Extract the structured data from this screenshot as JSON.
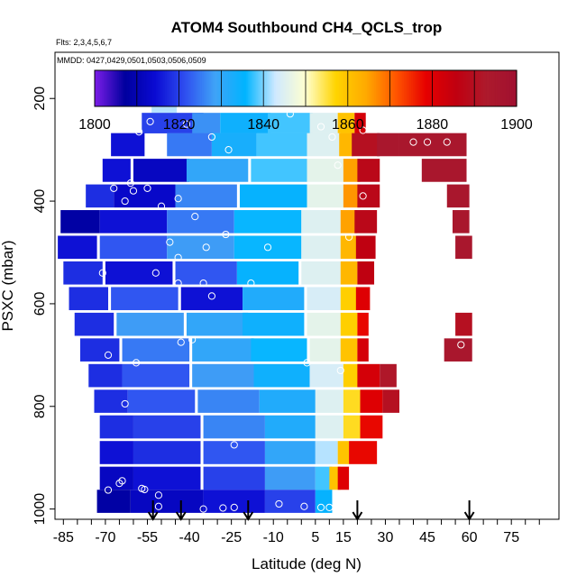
{
  "chart_data": {
    "type": "heatmap",
    "title": "ATOM4 Southbound CH4_QCLS_trop",
    "flights_note": "Flts: 2,3,4,5,6,7",
    "dates_note": "MMDD: 0427,0429,0501,0503,0506,0509",
    "xlabel": "Latitude (deg N)",
    "ylabel": "PSXC (mbar)",
    "xlim": [
      -88,
      92
    ],
    "ylim": [
      1020,
      110
    ],
    "x_tick_labels": [
      "-85",
      "-70",
      "-55",
      "-40",
      "-25",
      "-10",
      "5",
      "15",
      "30",
      "45",
      "60",
      "75"
    ],
    "x_tick_values": [
      -85,
      -70,
      -55,
      -40,
      -25,
      -10,
      5,
      15,
      30,
      45,
      60,
      75
    ],
    "x_minor_step": 5,
    "y_tick_labels": [
      "200",
      "400",
      "600",
      "800",
      "1000"
    ],
    "y_tick_values": [
      200,
      400,
      600,
      800,
      1000
    ],
    "colorbar": {
      "min": 1800,
      "max": 1900,
      "tick_labels": [
        "1800",
        "1820",
        "1840",
        "1860",
        "1880",
        "1900"
      ],
      "tick_values": [
        1800,
        1820,
        1840,
        1860,
        1880,
        1900
      ],
      "colors": [
        "#7d1ee8",
        "#00009e",
        "#0a0ad2",
        "#2f4ff0",
        "#3fa3f7",
        "#00b4ff",
        "#cfe9ff",
        "#ffffcf",
        "#ffd400",
        "#ffaa00",
        "#ff5500",
        "#e60000",
        "#c00010",
        "#ad1a2c",
        "#a01030"
      ]
    },
    "cells": [
      {
        "lat": -49,
        "p": 208,
        "dlat": 9,
        "dp": 40,
        "v": 1842
      },
      {
        "lat": -46,
        "p": 248,
        "dlat": 22,
        "dp": 40,
        "v": 1820
      },
      {
        "lat": -34,
        "p": 248,
        "dlat": 10,
        "dp": 40,
        "v": 1827
      },
      {
        "lat": -20,
        "p": 248,
        "dlat": 18,
        "dp": 40,
        "v": 1834
      },
      {
        "lat": -4,
        "p": 248,
        "dlat": 16,
        "dp": 40,
        "v": 1838
      },
      {
        "lat": 8,
        "p": 248,
        "dlat": 10,
        "dp": 40,
        "v": 1845
      },
      {
        "lat": 16,
        "p": 248,
        "dlat": 6,
        "dp": 40,
        "v": 1860
      },
      {
        "lat": 21,
        "p": 248,
        "dlat": 4,
        "dp": 40,
        "v": 1882
      },
      {
        "lat": -62,
        "p": 290,
        "dlat": 12,
        "dp": 45,
        "v": 1815
      },
      {
        "lat": -40,
        "p": 290,
        "dlat": 16,
        "dp": 45,
        "v": 1825
      },
      {
        "lat": -24,
        "p": 290,
        "dlat": 16,
        "dp": 45,
        "v": 1833
      },
      {
        "lat": -7,
        "p": 290,
        "dlat": 18,
        "dp": 45,
        "v": 1838
      },
      {
        "lat": 8,
        "p": 290,
        "dlat": 12,
        "dp": 45,
        "v": 1845
      },
      {
        "lat": 16,
        "p": 290,
        "dlat": 5,
        "dp": 45,
        "v": 1862
      },
      {
        "lat": 23,
        "p": 290,
        "dlat": 10,
        "dp": 45,
        "v": 1890
      },
      {
        "lat": 31,
        "p": 290,
        "dlat": 8,
        "dp": 45,
        "v": 1895
      },
      {
        "lat": 47,
        "p": 290,
        "dlat": 24,
        "dp": 45,
        "v": 1895
      },
      {
        "lat": -66,
        "p": 340,
        "dlat": 10,
        "dp": 45,
        "v": 1815
      },
      {
        "lat": -50,
        "p": 340,
        "dlat": 20,
        "dp": 45,
        "v": 1812
      },
      {
        "lat": -30,
        "p": 340,
        "dlat": 22,
        "dp": 45,
        "v": 1830
      },
      {
        "lat": -8,
        "p": 340,
        "dlat": 20,
        "dp": 45,
        "v": 1838
      },
      {
        "lat": 9,
        "p": 340,
        "dlat": 14,
        "dp": 45,
        "v": 1846
      },
      {
        "lat": 18,
        "p": 340,
        "dlat": 6,
        "dp": 45,
        "v": 1865
      },
      {
        "lat": 24,
        "p": 340,
        "dlat": 8,
        "dp": 45,
        "v": 1888
      },
      {
        "lat": 51,
        "p": 340,
        "dlat": 16,
        "dp": 45,
        "v": 1895
      },
      {
        "lat": -72,
        "p": 390,
        "dlat": 10,
        "dp": 45,
        "v": 1818
      },
      {
        "lat": -56,
        "p": 390,
        "dlat": 22,
        "dp": 45,
        "v": 1813
      },
      {
        "lat": -34,
        "p": 390,
        "dlat": 22,
        "dp": 45,
        "v": 1826
      },
      {
        "lat": -10,
        "p": 390,
        "dlat": 24,
        "dp": 45,
        "v": 1835
      },
      {
        "lat": 9,
        "p": 390,
        "dlat": 14,
        "dp": 45,
        "v": 1846
      },
      {
        "lat": 18,
        "p": 390,
        "dlat": 6,
        "dp": 45,
        "v": 1866
      },
      {
        "lat": 24,
        "p": 390,
        "dlat": 8,
        "dp": 45,
        "v": 1888
      },
      {
        "lat": 56,
        "p": 390,
        "dlat": 8,
        "dp": 45,
        "v": 1895
      },
      {
        "lat": -79,
        "p": 440,
        "dlat": 14,
        "dp": 45,
        "v": 1808
      },
      {
        "lat": -60,
        "p": 440,
        "dlat": 24,
        "dp": 45,
        "v": 1815
      },
      {
        "lat": -36,
        "p": 440,
        "dlat": 24,
        "dp": 45,
        "v": 1825
      },
      {
        "lat": -12,
        "p": 440,
        "dlat": 24,
        "dp": 45,
        "v": 1836
      },
      {
        "lat": 7,
        "p": 440,
        "dlat": 14,
        "dp": 45,
        "v": 1845
      },
      {
        "lat": 17,
        "p": 440,
        "dlat": 6,
        "dp": 45,
        "v": 1865
      },
      {
        "lat": 23,
        "p": 440,
        "dlat": 8,
        "dp": 45,
        "v": 1888
      },
      {
        "lat": 57,
        "p": 440,
        "dlat": 6,
        "dp": 45,
        "v": 1895
      },
      {
        "lat": -80,
        "p": 490,
        "dlat": 14,
        "dp": 45,
        "v": 1815
      },
      {
        "lat": -60,
        "p": 490,
        "dlat": 24,
        "dp": 45,
        "v": 1822
      },
      {
        "lat": -36,
        "p": 490,
        "dlat": 24,
        "dp": 45,
        "v": 1828
      },
      {
        "lat": -12,
        "p": 490,
        "dlat": 24,
        "dp": 45,
        "v": 1836
      },
      {
        "lat": 7,
        "p": 490,
        "dlat": 14,
        "dp": 45,
        "v": 1845
      },
      {
        "lat": 17,
        "p": 490,
        "dlat": 6,
        "dp": 45,
        "v": 1862
      },
      {
        "lat": 23,
        "p": 490,
        "dlat": 7,
        "dp": 45,
        "v": 1886
      },
      {
        "lat": 58,
        "p": 490,
        "dlat": 6,
        "dp": 45,
        "v": 1895
      },
      {
        "lat": -78,
        "p": 540,
        "dlat": 14,
        "dp": 45,
        "v": 1818
      },
      {
        "lat": -58,
        "p": 540,
        "dlat": 24,
        "dp": 45,
        "v": 1815
      },
      {
        "lat": -34,
        "p": 540,
        "dlat": 22,
        "dp": 45,
        "v": 1822
      },
      {
        "lat": -12,
        "p": 540,
        "dlat": 22,
        "dp": 45,
        "v": 1835
      },
      {
        "lat": 7,
        "p": 540,
        "dlat": 14,
        "dp": 45,
        "v": 1845
      },
      {
        "lat": 17,
        "p": 540,
        "dlat": 6,
        "dp": 45,
        "v": 1862
      },
      {
        "lat": 23,
        "p": 540,
        "dlat": 6,
        "dp": 45,
        "v": 1886
      },
      {
        "lat": -76,
        "p": 590,
        "dlat": 14,
        "dp": 45,
        "v": 1818
      },
      {
        "lat": -56,
        "p": 590,
        "dlat": 24,
        "dp": 45,
        "v": 1822
      },
      {
        "lat": -32,
        "p": 590,
        "dlat": 22,
        "dp": 45,
        "v": 1815
      },
      {
        "lat": -10,
        "p": 590,
        "dlat": 22,
        "dp": 45,
        "v": 1832
      },
      {
        "lat": 8,
        "p": 590,
        "dlat": 12,
        "dp": 45,
        "v": 1844
      },
      {
        "lat": 17,
        "p": 590,
        "dlat": 6,
        "dp": 45,
        "v": 1858
      },
      {
        "lat": 22,
        "p": 590,
        "dlat": 5,
        "dp": 45,
        "v": 1880
      },
      {
        "lat": -74,
        "p": 640,
        "dlat": 14,
        "dp": 45,
        "v": 1818
      },
      {
        "lat": -54,
        "p": 640,
        "dlat": 24,
        "dp": 45,
        "v": 1828
      },
      {
        "lat": -30,
        "p": 640,
        "dlat": 22,
        "dp": 45,
        "v": 1830
      },
      {
        "lat": -10,
        "p": 640,
        "dlat": 22,
        "dp": 45,
        "v": 1834
      },
      {
        "lat": 8,
        "p": 640,
        "dlat": 12,
        "dp": 45,
        "v": 1846
      },
      {
        "lat": 17,
        "p": 640,
        "dlat": 6,
        "dp": 45,
        "v": 1858
      },
      {
        "lat": 22,
        "p": 640,
        "dlat": 4,
        "dp": 45,
        "v": 1878
      },
      {
        "lat": 58,
        "p": 640,
        "dlat": 6,
        "dp": 45,
        "v": 1890
      },
      {
        "lat": -72,
        "p": 690,
        "dlat": 14,
        "dp": 45,
        "v": 1818
      },
      {
        "lat": -52,
        "p": 690,
        "dlat": 24,
        "dp": 45,
        "v": 1825
      },
      {
        "lat": -28,
        "p": 690,
        "dlat": 22,
        "dp": 45,
        "v": 1830
      },
      {
        "lat": -8,
        "p": 690,
        "dlat": 20,
        "dp": 45,
        "v": 1836
      },
      {
        "lat": 9,
        "p": 690,
        "dlat": 12,
        "dp": 45,
        "v": 1846
      },
      {
        "lat": 17,
        "p": 690,
        "dlat": 6,
        "dp": 45,
        "v": 1860
      },
      {
        "lat": 22,
        "p": 690,
        "dlat": 4,
        "dp": 45,
        "v": 1882
      },
      {
        "lat": 56,
        "p": 690,
        "dlat": 10,
        "dp": 45,
        "v": 1895
      },
      {
        "lat": -70,
        "p": 740,
        "dlat": 12,
        "dp": 45,
        "v": 1818
      },
      {
        "lat": -52,
        "p": 740,
        "dlat": 24,
        "dp": 45,
        "v": 1822
      },
      {
        "lat": -28,
        "p": 740,
        "dlat": 22,
        "dp": 45,
        "v": 1828
      },
      {
        "lat": -7,
        "p": 740,
        "dlat": 20,
        "dp": 45,
        "v": 1834
      },
      {
        "lat": 9,
        "p": 740,
        "dlat": 12,
        "dp": 45,
        "v": 1844
      },
      {
        "lat": 18,
        "p": 740,
        "dlat": 6,
        "dp": 45,
        "v": 1858
      },
      {
        "lat": 24,
        "p": 740,
        "dlat": 8,
        "dp": 45,
        "v": 1882
      },
      {
        "lat": 31,
        "p": 740,
        "dlat": 6,
        "dp": 45,
        "v": 1892
      },
      {
        "lat": -68,
        "p": 790,
        "dlat": 12,
        "dp": 45,
        "v": 1818
      },
      {
        "lat": -50,
        "p": 790,
        "dlat": 24,
        "dp": 45,
        "v": 1822
      },
      {
        "lat": -26,
        "p": 790,
        "dlat": 22,
        "dp": 45,
        "v": 1826
      },
      {
        "lat": -5,
        "p": 790,
        "dlat": 20,
        "dp": 45,
        "v": 1832
      },
      {
        "lat": 10,
        "p": 790,
        "dlat": 10,
        "dp": 45,
        "v": 1845
      },
      {
        "lat": 18,
        "p": 790,
        "dlat": 6,
        "dp": 45,
        "v": 1856
      },
      {
        "lat": 25,
        "p": 790,
        "dlat": 8,
        "dp": 45,
        "v": 1880
      },
      {
        "lat": 32,
        "p": 790,
        "dlat": 6,
        "dp": 45,
        "v": 1890
      },
      {
        "lat": -66,
        "p": 840,
        "dlat": 12,
        "dp": 45,
        "v": 1818
      },
      {
        "lat": -48,
        "p": 840,
        "dlat": 24,
        "dp": 45,
        "v": 1820
      },
      {
        "lat": -24,
        "p": 840,
        "dlat": 22,
        "dp": 45,
        "v": 1826
      },
      {
        "lat": -4,
        "p": 840,
        "dlat": 18,
        "dp": 45,
        "v": 1832
      },
      {
        "lat": 10,
        "p": 840,
        "dlat": 10,
        "dp": 45,
        "v": 1845
      },
      {
        "lat": 18,
        "p": 840,
        "dlat": 6,
        "dp": 45,
        "v": 1856
      },
      {
        "lat": 25,
        "p": 840,
        "dlat": 8,
        "dp": 45,
        "v": 1878
      },
      {
        "lat": -66,
        "p": 890,
        "dlat": 12,
        "dp": 45,
        "v": 1815
      },
      {
        "lat": -48,
        "p": 890,
        "dlat": 24,
        "dp": 45,
        "v": 1818
      },
      {
        "lat": -24,
        "p": 890,
        "dlat": 22,
        "dp": 45,
        "v": 1822
      },
      {
        "lat": -4,
        "p": 890,
        "dlat": 18,
        "dp": 45,
        "v": 1830
      },
      {
        "lat": 9,
        "p": 890,
        "dlat": 8,
        "dp": 45,
        "v": 1842
      },
      {
        "lat": 15,
        "p": 890,
        "dlat": 4,
        "dp": 45,
        "v": 1860
      },
      {
        "lat": 22,
        "p": 890,
        "dlat": 10,
        "dp": 45,
        "v": 1878
      },
      {
        "lat": -66,
        "p": 940,
        "dlat": 12,
        "dp": 45,
        "v": 1812
      },
      {
        "lat": -48,
        "p": 940,
        "dlat": 24,
        "dp": 45,
        "v": 1815
      },
      {
        "lat": -24,
        "p": 940,
        "dlat": 22,
        "dp": 45,
        "v": 1820
      },
      {
        "lat": -4,
        "p": 940,
        "dlat": 18,
        "dp": 45,
        "v": 1828
      },
      {
        "lat": 8,
        "p": 940,
        "dlat": 6,
        "dp": 45,
        "v": 1838
      },
      {
        "lat": 12,
        "p": 940,
        "dlat": 4,
        "dp": 45,
        "v": 1860
      },
      {
        "lat": 15,
        "p": 940,
        "dlat": 4,
        "dp": 45,
        "v": 1880
      },
      {
        "lat": -67,
        "p": 985,
        "dlat": 12,
        "dp": 45,
        "v": 1808
      },
      {
        "lat": -48,
        "p": 985,
        "dlat": 26,
        "dp": 45,
        "v": 1812
      },
      {
        "lat": -24,
        "p": 985,
        "dlat": 22,
        "dp": 45,
        "v": 1815
      },
      {
        "lat": -4,
        "p": 985,
        "dlat": 18,
        "dp": 45,
        "v": 1820
      },
      {
        "lat": 8,
        "p": 985,
        "dlat": 6,
        "dp": 45,
        "v": 1835
      }
    ],
    "points": [
      {
        "lat": -50,
        "p": 205
      },
      {
        "lat": -41,
        "p": 250
      },
      {
        "lat": -54,
        "p": 245
      },
      {
        "lat": -32,
        "p": 275
      },
      {
        "lat": -26,
        "p": 300
      },
      {
        "lat": -4,
        "p": 230
      },
      {
        "lat": 7,
        "p": 255
      },
      {
        "lat": 11,
        "p": 275
      },
      {
        "lat": 13,
        "p": 330
      },
      {
        "lat": 20,
        "p": 215
      },
      {
        "lat": 22,
        "p": 262
      },
      {
        "lat": 40,
        "p": 285
      },
      {
        "lat": 45,
        "p": 285
      },
      {
        "lat": 52,
        "p": 285
      },
      {
        "lat": -58,
        "p": 265
      },
      {
        "lat": -61,
        "p": 365
      },
      {
        "lat": -63,
        "p": 400
      },
      {
        "lat": -60,
        "p": 380
      },
      {
        "lat": -67,
        "p": 375
      },
      {
        "lat": -50,
        "p": 410
      },
      {
        "lat": -55,
        "p": 375
      },
      {
        "lat": -44,
        "p": 395
      },
      {
        "lat": -38,
        "p": 430
      },
      {
        "lat": -47,
        "p": 480
      },
      {
        "lat": -34,
        "p": 490
      },
      {
        "lat": -27,
        "p": 465
      },
      {
        "lat": -12,
        "p": 490
      },
      {
        "lat": 17,
        "p": 470
      },
      {
        "lat": 22,
        "p": 390
      },
      {
        "lat": -71,
        "p": 540
      },
      {
        "lat": -52,
        "p": 540
      },
      {
        "lat": -44,
        "p": 510
      },
      {
        "lat": -44,
        "p": 560
      },
      {
        "lat": -35,
        "p": 560
      },
      {
        "lat": -18,
        "p": 560
      },
      {
        "lat": -32,
        "p": 585
      },
      {
        "lat": -43,
        "p": 675
      },
      {
        "lat": -39,
        "p": 670
      },
      {
        "lat": -69,
        "p": 700
      },
      {
        "lat": -59,
        "p": 715
      },
      {
        "lat": 2,
        "p": 715
      },
      {
        "lat": 14,
        "p": 730
      },
      {
        "lat": 57,
        "p": 680
      },
      {
        "lat": -63,
        "p": 795
      },
      {
        "lat": -24,
        "p": 875
      },
      {
        "lat": -64,
        "p": 945
      },
      {
        "lat": -65,
        "p": 950
      },
      {
        "lat": -57,
        "p": 960
      },
      {
        "lat": -56,
        "p": 962
      },
      {
        "lat": -69,
        "p": 963
      },
      {
        "lat": -51,
        "p": 973
      },
      {
        "lat": -51,
        "p": 995
      },
      {
        "lat": -35,
        "p": 1000
      },
      {
        "lat": -28,
        "p": 998
      },
      {
        "lat": -24,
        "p": 997
      },
      {
        "lat": -8,
        "p": 990
      },
      {
        "lat": 1,
        "p": 995
      },
      {
        "lat": 7,
        "p": 997
      },
      {
        "lat": 10,
        "p": 997
      }
    ],
    "profile_markers_lat": [
      -53,
      -43,
      -19,
      20,
      60
    ]
  }
}
